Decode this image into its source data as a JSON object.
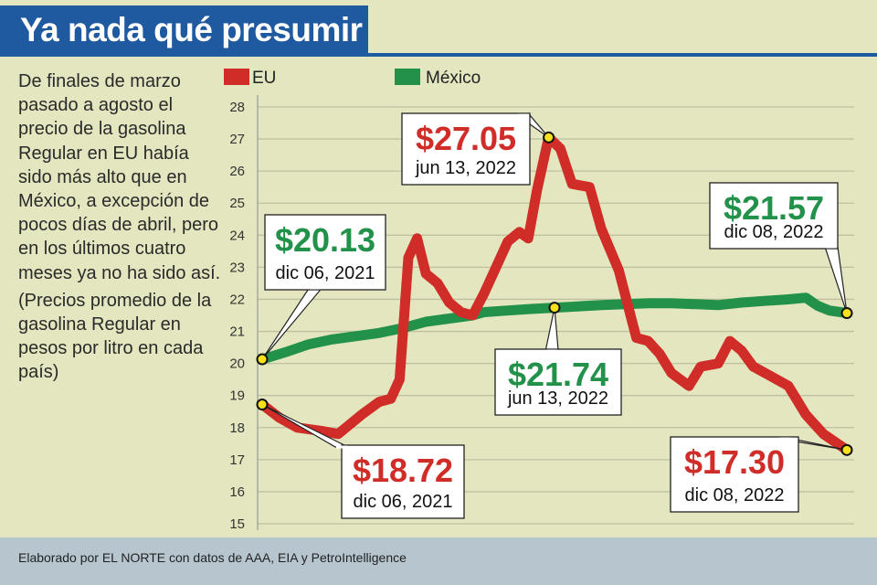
{
  "header": {
    "title": "Ya nada qué presumir"
  },
  "description": {
    "paragraph1": "De finales de marzo pasado a agosto el precio de la gasolina Regular en EU había sido más alto que en México, a excepción de pocos días de abril, pero en los últimos cuatro meses ya no ha sido así.",
    "paragraph2": "(Precios promedio de la gasolina Regular en pesos por litro en cada país)"
  },
  "footer": {
    "source": "Elaborado por EL NORTE con datos de AAA, EIA y PetroIntelligence"
  },
  "colors": {
    "eu": "#d02c28",
    "mexico": "#22914a",
    "title_bar": "#1f5aa0",
    "background": "#e4e6bf",
    "footer": "#b6c5ce"
  },
  "chart_data": {
    "type": "line",
    "title": "Ya nada qué presumir",
    "xlabel": "",
    "ylabel": "",
    "ylim": [
      15,
      28
    ],
    "yticks": [
      15,
      16,
      17,
      18,
      19,
      20,
      21,
      22,
      23,
      24,
      25,
      26,
      27,
      28
    ],
    "grid": true,
    "legend": [
      {
        "name": "EU",
        "color": "#d02c28"
      },
      {
        "name": "México",
        "color": "#22914a"
      }
    ],
    "x_range": [
      "dic 06, 2021",
      "dic 08, 2022"
    ],
    "series": [
      {
        "name": "EU",
        "color": "#d02c28",
        "x": [
          0,
          0.03,
          0.06,
          0.1,
          0.13,
          0.17,
          0.2,
          0.22,
          0.235,
          0.25,
          0.265,
          0.28,
          0.3,
          0.32,
          0.34,
          0.36,
          0.38,
          0.4,
          0.42,
          0.44,
          0.455,
          0.47,
          0.49,
          0.51,
          0.53,
          0.56,
          0.58,
          0.61,
          0.64,
          0.66,
          0.68,
          0.7,
          0.73,
          0.75,
          0.78,
          0.8,
          0.82,
          0.84,
          0.87,
          0.9,
          0.93,
          0.96,
          1.0
        ],
        "values": [
          18.72,
          18.3,
          18.0,
          17.9,
          17.8,
          18.4,
          18.8,
          18.9,
          19.5,
          23.3,
          23.9,
          22.8,
          22.5,
          21.9,
          21.6,
          21.5,
          22.2,
          23.0,
          23.8,
          24.1,
          23.9,
          25.4,
          27.05,
          26.7,
          25.6,
          25.5,
          24.2,
          22.9,
          20.8,
          20.7,
          20.3,
          19.7,
          19.3,
          19.9,
          20.0,
          20.7,
          20.4,
          19.9,
          19.6,
          19.3,
          18.4,
          17.8,
          17.3
        ]
      },
      {
        "name": "México",
        "color": "#22914a",
        "x": [
          0,
          0.04,
          0.08,
          0.12,
          0.16,
          0.2,
          0.24,
          0.28,
          0.32,
          0.36,
          0.38,
          0.42,
          0.46,
          0.5,
          0.54,
          0.58,
          0.62,
          0.66,
          0.7,
          0.74,
          0.78,
          0.82,
          0.86,
          0.9,
          0.93,
          0.95,
          0.97,
          1.0
        ],
        "values": [
          20.13,
          20.35,
          20.6,
          20.75,
          20.85,
          20.95,
          21.1,
          21.3,
          21.4,
          21.5,
          21.6,
          21.65,
          21.7,
          21.74,
          21.78,
          21.82,
          21.85,
          21.88,
          21.88,
          21.85,
          21.82,
          21.9,
          21.95,
          22.0,
          22.05,
          21.8,
          21.65,
          21.57
        ]
      }
    ],
    "annotations": [
      {
        "series": "México",
        "x": 0,
        "value": 20.13,
        "price": "$20.13",
        "date": "dic 06, 2021"
      },
      {
        "series": "EU",
        "x": 0,
        "value": 18.72,
        "price": "$18.72",
        "date": "dic 06, 2021"
      },
      {
        "series": "EU",
        "x": 0.49,
        "value": 27.05,
        "price": "$27.05",
        "date": "jun 13, 2022"
      },
      {
        "series": "México",
        "x": 0.5,
        "value": 21.74,
        "price": "$21.74",
        "date": "jun 13, 2022"
      },
      {
        "series": "México",
        "x": 1.0,
        "value": 21.57,
        "price": "$21.57",
        "date": "dic 08, 2022"
      },
      {
        "series": "EU",
        "x": 1.0,
        "value": 17.3,
        "price": "$17.30",
        "date": "dic 08, 2022"
      }
    ]
  }
}
